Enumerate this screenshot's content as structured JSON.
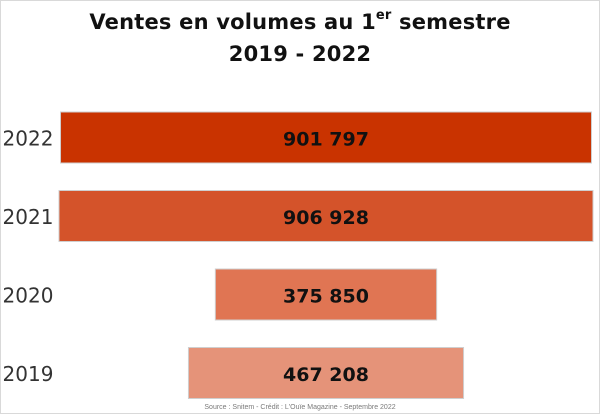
{
  "chart_data": {
    "type": "bar",
    "orientation": "horizontal",
    "layout": "centered funnel",
    "title_line1": "Ventes en volumes au 1",
    "title_superscript": "er",
    "title_line1_end": " semestre",
    "title_line2": "2019 - 2022",
    "categories": [
      "2022",
      "2021",
      "2020",
      "2019"
    ],
    "values": [
      901797,
      906928,
      375850,
      467208
    ],
    "value_labels": [
      "901 797",
      "906 928",
      "375 850",
      "467 208"
    ],
    "colors": [
      "#c93300",
      "#d4532a",
      "#e07553",
      "#e59379"
    ],
    "grid": false,
    "legend": "none"
  },
  "source": "Source : Snitem - Crédit : L'Ouïe Magazine - Septembre 2022"
}
